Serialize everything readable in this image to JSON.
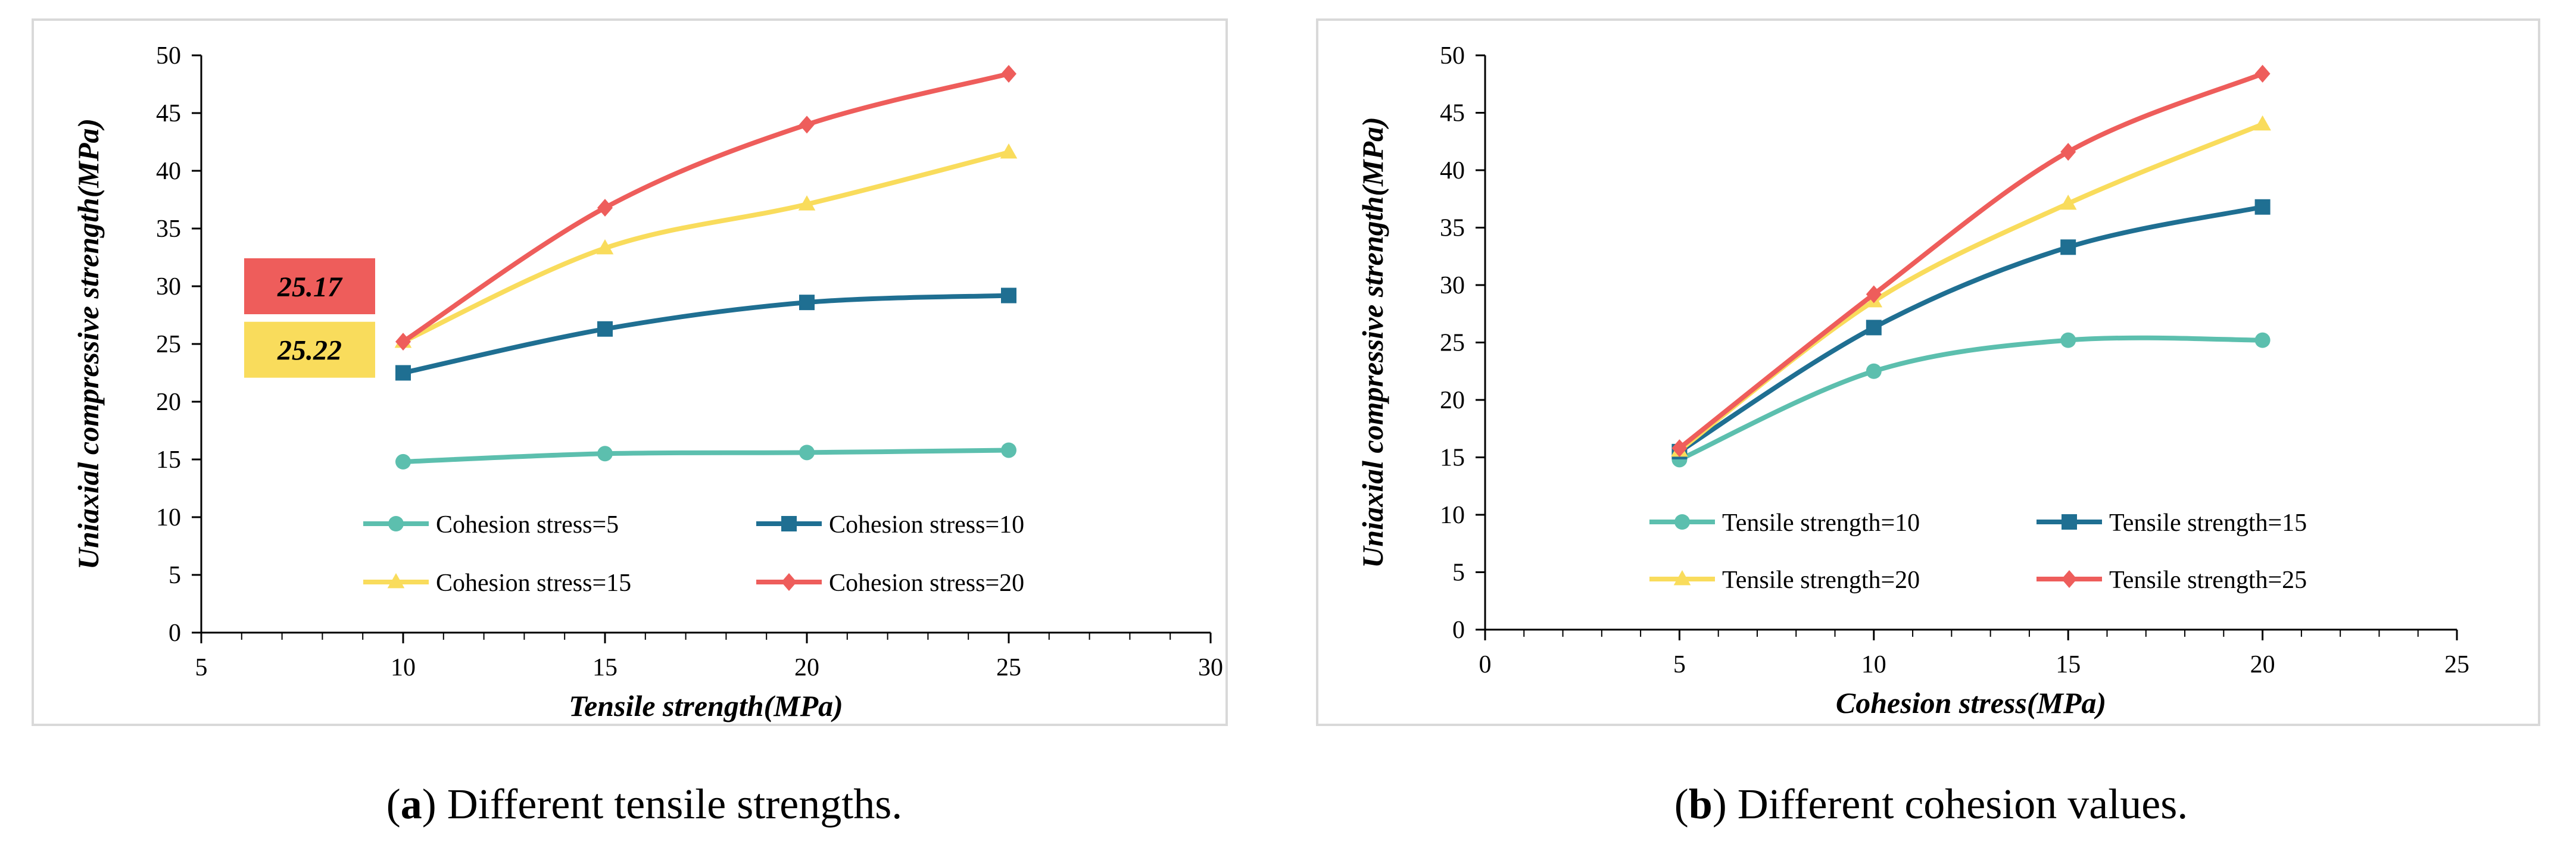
{
  "colors": {
    "c5": "#5cbfae",
    "c10": "#1f6f92",
    "c15": "#f9dc5c",
    "c20": "#ee5d5b",
    "frame": "#d9d9d9",
    "axis": "#000000"
  },
  "chart_data": [
    {
      "type": "line",
      "caption": {
        "prefix": "(",
        "letter": "a",
        "rest": ") Different tensile strengths."
      },
      "xlabel": "Tensile strength(MPa)",
      "ylabel": "Uniaxial compressive strength(MPa)",
      "xlim": [
        5,
        30
      ],
      "xticks": [
        5,
        10,
        15,
        20,
        25,
        30
      ],
      "ylim": [
        0,
        50
      ],
      "yticks": [
        0,
        5,
        10,
        15,
        20,
        25,
        30,
        35,
        40,
        45,
        50
      ],
      "grid": false,
      "legend_position": "lower-center",
      "series": [
        {
          "name": "Cohesion stress=5",
          "marker": "circle",
          "color_key": "c5",
          "x": [
            10,
            15,
            20,
            25
          ],
          "y": [
            14.8,
            15.5,
            15.6,
            15.8
          ]
        },
        {
          "name": "Cohesion stress=10",
          "marker": "square",
          "color_key": "c10",
          "x": [
            10,
            15,
            20,
            25
          ],
          "y": [
            22.5,
            26.3,
            28.6,
            29.2
          ]
        },
        {
          "name": "Cohesion stress=15",
          "marker": "triangle",
          "color_key": "c15",
          "x": [
            10,
            15,
            20,
            25
          ],
          "y": [
            25.2,
            33.3,
            37.1,
            41.6
          ]
        },
        {
          "name": "Cohesion stress=20",
          "marker": "diamond",
          "color_key": "c20",
          "x": [
            10,
            15,
            20,
            25
          ],
          "y": [
            25.2,
            36.8,
            44.0,
            48.4
          ]
        }
      ],
      "annotations": [
        {
          "text": "25.17",
          "color_key": "c20",
          "y": 30
        },
        {
          "text": "25.22",
          "color_key": "c15",
          "y": 24.5
        }
      ]
    },
    {
      "type": "line",
      "caption": {
        "prefix": "(",
        "letter": "b",
        "rest": ") Different cohesion values."
      },
      "xlabel": "Cohesion stress(MPa)",
      "ylabel": "Uniaxial compressive strength(MPa)",
      "xlim": [
        0,
        25
      ],
      "xticks": [
        0,
        5,
        10,
        15,
        20,
        25
      ],
      "ylim": [
        0,
        50
      ],
      "yticks": [
        0,
        5,
        10,
        15,
        20,
        25,
        30,
        35,
        40,
        45,
        50
      ],
      "grid": false,
      "legend_position": "lower-center",
      "series": [
        {
          "name": "Tensile strength=10",
          "marker": "circle",
          "color_key": "c5",
          "x": [
            5,
            10,
            15,
            20
          ],
          "y": [
            14.8,
            22.5,
            25.2,
            25.2
          ]
        },
        {
          "name": "Tensile strength=15",
          "marker": "square",
          "color_key": "c10",
          "x": [
            5,
            10,
            15,
            20
          ],
          "y": [
            15.5,
            26.3,
            33.3,
            36.8
          ]
        },
        {
          "name": "Tensile strength=20",
          "marker": "triangle",
          "color_key": "c15",
          "x": [
            5,
            10,
            15,
            20
          ],
          "y": [
            15.6,
            28.6,
            37.1,
            44.0
          ]
        },
        {
          "name": "Tensile strength=25",
          "marker": "diamond",
          "color_key": "c20",
          "x": [
            5,
            10,
            15,
            20
          ],
          "y": [
            15.8,
            29.2,
            41.6,
            48.4
          ]
        }
      ],
      "annotations": []
    }
  ]
}
